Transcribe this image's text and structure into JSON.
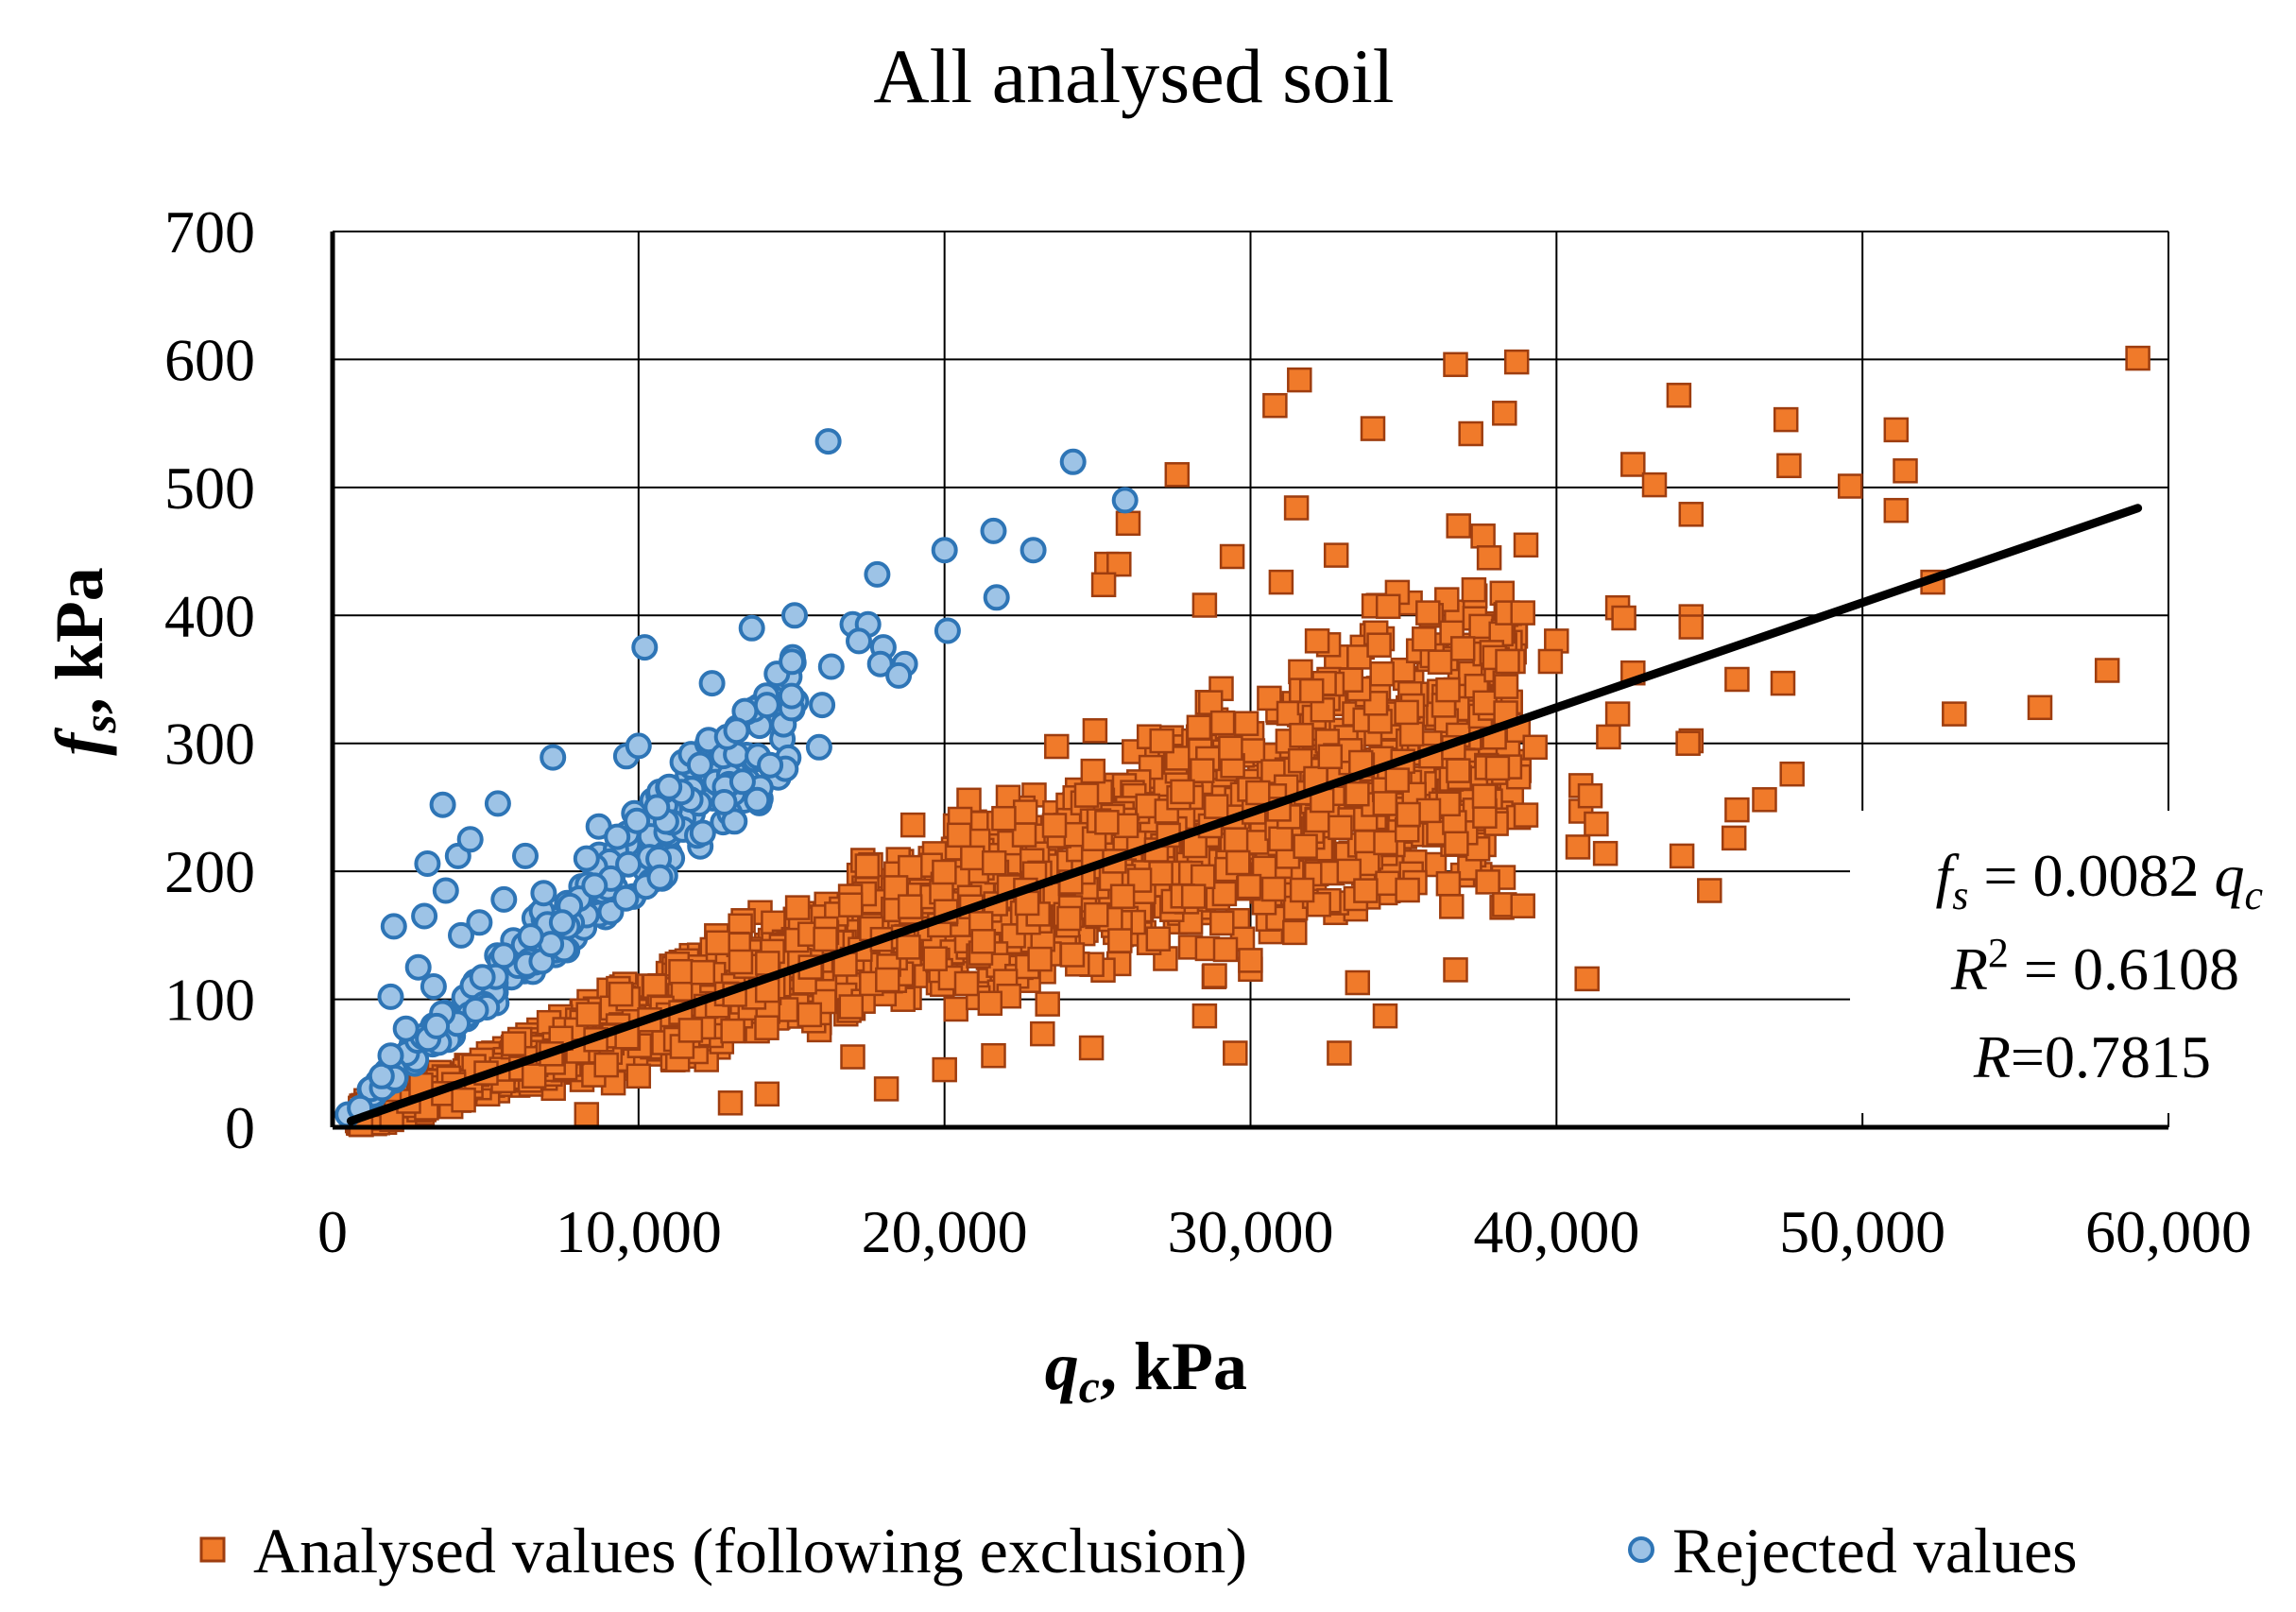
{
  "chart_data": {
    "type": "scatter",
    "title": "All analysed soil",
    "xlabel": {
      "main": "q",
      "sub": "c",
      "unit": ", kPa"
    },
    "ylabel": {
      "main": "f",
      "sub": "s",
      "unit": ", kPa"
    },
    "xlim": [
      0,
      60000
    ],
    "ylim": [
      0,
      700
    ],
    "xticks": [
      0,
      10000,
      20000,
      30000,
      40000,
      50000,
      60000
    ],
    "yticks": [
      0,
      100,
      200,
      300,
      400,
      500,
      600,
      700
    ],
    "xtick_labels": [
      "0",
      "10,000",
      "20,000",
      "30,000",
      "40,000",
      "50,000",
      "60,000"
    ],
    "ytick_labels": [
      "0",
      "100",
      "200",
      "300",
      "400",
      "500",
      "600",
      "700"
    ],
    "grid": true,
    "legend_position": "bottom",
    "series": [
      {
        "name": "Analysed values (following exclusion)",
        "marker": "square",
        "color": "#F07A2A",
        "edge_color": "#9E3D0F",
        "points": [
          [
            59000,
            601
          ],
          [
            36700,
            596
          ],
          [
            38700,
            598
          ],
          [
            31600,
            584
          ],
          [
            30800,
            564
          ],
          [
            34000,
            546
          ],
          [
            37200,
            542
          ],
          [
            38300,
            558
          ],
          [
            44000,
            572
          ],
          [
            27600,
            510
          ],
          [
            42500,
            518
          ],
          [
            43200,
            502
          ],
          [
            44400,
            479
          ],
          [
            47500,
            553
          ],
          [
            47600,
            517
          ],
          [
            49600,
            501
          ],
          [
            51100,
            545
          ],
          [
            51100,
            482
          ],
          [
            51400,
            513
          ],
          [
            31500,
            484
          ],
          [
            36800,
            470
          ],
          [
            37600,
            462
          ],
          [
            37800,
            445
          ],
          [
            39000,
            455
          ],
          [
            25300,
            440
          ],
          [
            25700,
            440
          ],
          [
            25200,
            424
          ],
          [
            26000,
            472
          ],
          [
            29400,
            446
          ],
          [
            32800,
            447
          ],
          [
            34800,
            418
          ],
          [
            34500,
            407
          ],
          [
            28500,
            408
          ],
          [
            31000,
            426
          ],
          [
            35800,
            402
          ],
          [
            37300,
            420
          ],
          [
            38400,
            402
          ],
          [
            38900,
            402
          ],
          [
            40000,
            380
          ],
          [
            42000,
            406
          ],
          [
            42200,
            398
          ],
          [
            44400,
            399
          ],
          [
            44400,
            391
          ],
          [
            52300,
            426
          ],
          [
            38400,
            364
          ],
          [
            39800,
            364
          ],
          [
            42500,
            355
          ],
          [
            42000,
            323
          ],
          [
            41700,
            305
          ],
          [
            44400,
            302
          ],
          [
            44300,
            300
          ],
          [
            45900,
            350
          ],
          [
            47400,
            347
          ],
          [
            46800,
            256
          ],
          [
            47700,
            276
          ],
          [
            45900,
            248
          ],
          [
            45800,
            226
          ],
          [
            44100,
            212
          ],
          [
            45000,
            185
          ],
          [
            40800,
            267
          ],
          [
            40800,
            247
          ],
          [
            41600,
            214
          ],
          [
            41000,
            116
          ],
          [
            36700,
            123
          ],
          [
            34400,
            87
          ],
          [
            32900,
            58
          ],
          [
            29500,
            58
          ],
          [
            28500,
            87
          ],
          [
            24800,
            62
          ],
          [
            23200,
            73
          ],
          [
            33500,
            113
          ],
          [
            40700,
            219
          ],
          [
            41100,
            259
          ],
          [
            41300,
            237
          ],
          [
            39300,
            297
          ],
          [
            38300,
            174
          ],
          [
            38900,
            173
          ],
          [
            39000,
            244
          ],
          [
            53000,
            323
          ],
          [
            55800,
            328
          ],
          [
            58000,
            357
          ],
          [
            18100,
            30
          ],
          [
            20000,
            45
          ],
          [
            21600,
            56
          ],
          [
            17000,
            55
          ],
          [
            14200,
            26
          ],
          [
            8300,
            10
          ],
          [
            13000,
            19
          ],
          [
            10000,
            40
          ]
        ]
      },
      {
        "name": "Rejected values",
        "marker": "circle",
        "color": "#9DC3E6",
        "edge_color": "#2E75B6",
        "points": [
          [
            16200,
            536
          ],
          [
            24200,
            520
          ],
          [
            25900,
            490
          ],
          [
            21600,
            466
          ],
          [
            20000,
            451
          ],
          [
            22900,
            451
          ],
          [
            17800,
            432
          ],
          [
            21700,
            414
          ],
          [
            15100,
            400
          ],
          [
            13700,
            390
          ],
          [
            17000,
            393
          ],
          [
            17500,
            393
          ],
          [
            10200,
            375
          ],
          [
            17200,
            380
          ],
          [
            18000,
            375
          ],
          [
            20100,
            388
          ],
          [
            16300,
            360
          ],
          [
            12400,
            347
          ],
          [
            14200,
            330
          ],
          [
            15000,
            337
          ],
          [
            16000,
            330
          ],
          [
            17900,
            362
          ],
          [
            18700,
            362
          ],
          [
            18500,
            353
          ],
          [
            7200,
            289
          ],
          [
            9600,
            290
          ],
          [
            10000,
            298
          ],
          [
            12900,
            305
          ],
          [
            13200,
            310
          ],
          [
            13900,
            290
          ],
          [
            14300,
            283
          ],
          [
            15900,
            297
          ],
          [
            3600,
            252
          ],
          [
            5400,
            253
          ],
          [
            3100,
            206
          ],
          [
            3700,
            185
          ],
          [
            4100,
            212
          ],
          [
            4500,
            225
          ],
          [
            4800,
            160
          ],
          [
            2000,
            157
          ],
          [
            3000,
            165
          ],
          [
            1900,
            102
          ],
          [
            2400,
            77
          ],
          [
            1600,
            40
          ],
          [
            1900,
            56
          ],
          [
            500,
            10
          ],
          [
            900,
            15
          ],
          [
            11400,
            262
          ],
          [
            12100,
            230
          ],
          [
            12800,
            254
          ],
          [
            13400,
            270
          ],
          [
            10600,
            250
          ],
          [
            11000,
            266
          ],
          [
            6900,
            183
          ],
          [
            7500,
            160
          ],
          [
            8300,
            210
          ],
          [
            8700,
            235
          ],
          [
            9300,
            227
          ],
          [
            6300,
            212
          ],
          [
            5600,
            178
          ],
          [
            4200,
            150
          ],
          [
            3300,
            110
          ],
          [
            2800,
            125
          ]
        ]
      }
    ],
    "trendline": {
      "slope": 0.0082,
      "x_range": [
        600,
        59000
      ]
    },
    "annotation": {
      "line1_var": "f",
      "line1_sub": "s",
      "line1_eq": " = 0.0082 ",
      "line1_var2": "q",
      "line1_sub2": "c",
      "line2_var": "R",
      "line2_sup": "2",
      "line2_val": " = 0.6108",
      "line3_var": "R",
      "line3_val": "=0.7815"
    }
  }
}
